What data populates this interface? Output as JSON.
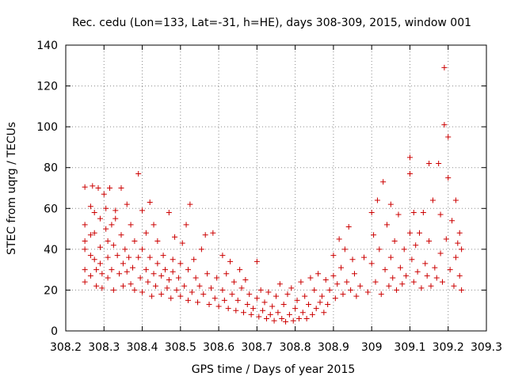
{
  "chart_data": {
    "type": "scatter",
    "title": "Rec. cedu (Lon=133, Lat=-31, h=HE), days 308-309, 2015, window 001",
    "xlabel": "GPS time / Days of year 2015",
    "ylabel": "STEC from uqrg / TECUs",
    "xlim": [
      308.2,
      309.3
    ],
    "ylim": [
      0,
      140
    ],
    "xticks": [
      308.2,
      308.3,
      308.4,
      308.5,
      308.6,
      308.7,
      308.8,
      308.9,
      309,
      309.1,
      309.2,
      309.3
    ],
    "xtick_labels": [
      "308.2",
      "308.3",
      "308.4",
      "308.5",
      "308.6",
      "308.7",
      "308.8",
      "308.9",
      "309",
      "309.1",
      "309.2",
      "309.3"
    ],
    "yticks": [
      0,
      20,
      40,
      60,
      80,
      100,
      120,
      140
    ],
    "ytick_labels": [
      "0",
      "20",
      "40",
      "60",
      "80",
      "100",
      "120",
      "140"
    ],
    "marker": "+",
    "marker_color": "#cc0000",
    "grid": true,
    "series": [
      {
        "name": "STEC",
        "points": [
          [
            308.25,
            70.5
          ],
          [
            308.25,
            52
          ],
          [
            308.25,
            44
          ],
          [
            308.25,
            40
          ],
          [
            308.25,
            30
          ],
          [
            308.25,
            24
          ],
          [
            308.265,
            61
          ],
          [
            308.265,
            47
          ],
          [
            308.265,
            37
          ],
          [
            308.265,
            27
          ],
          [
            308.27,
            71
          ],
          [
            308.275,
            58
          ],
          [
            308.275,
            48
          ],
          [
            308.275,
            35
          ],
          [
            308.28,
            30
          ],
          [
            308.28,
            22
          ],
          [
            308.285,
            70
          ],
          [
            308.29,
            55
          ],
          [
            308.29,
            41
          ],
          [
            308.29,
            33
          ],
          [
            308.295,
            28
          ],
          [
            308.295,
            21
          ],
          [
            308.3,
            67
          ],
          [
            308.305,
            60
          ],
          [
            308.305,
            50
          ],
          [
            308.31,
            44
          ],
          [
            308.31,
            36
          ],
          [
            308.31,
            26
          ],
          [
            308.315,
            70
          ],
          [
            308.32,
            52
          ],
          [
            308.32,
            30
          ],
          [
            308.325,
            42
          ],
          [
            308.325,
            20
          ],
          [
            308.33,
            59
          ],
          [
            308.33,
            55
          ],
          [
            308.335,
            37
          ],
          [
            308.34,
            28
          ],
          [
            308.345,
            70
          ],
          [
            308.345,
            47
          ],
          [
            308.35,
            33
          ],
          [
            308.35,
            22
          ],
          [
            308.355,
            40
          ],
          [
            308.36,
            62
          ],
          [
            308.36,
            29
          ],
          [
            308.365,
            36
          ],
          [
            308.37,
            52
          ],
          [
            308.37,
            23
          ],
          [
            308.375,
            31
          ],
          [
            308.38,
            44
          ],
          [
            308.38,
            20
          ],
          [
            308.39,
            77
          ],
          [
            308.39,
            36
          ],
          [
            308.395,
            26
          ],
          [
            308.4,
            59
          ],
          [
            308.4,
            40
          ],
          [
            308.4,
            19
          ],
          [
            308.41,
            48
          ],
          [
            308.41,
            30
          ],
          [
            308.415,
            24
          ],
          [
            308.42,
            63
          ],
          [
            308.42,
            36
          ],
          [
            308.425,
            17
          ],
          [
            308.43,
            52
          ],
          [
            308.43,
            28
          ],
          [
            308.435,
            22
          ],
          [
            308.44,
            44
          ],
          [
            308.44,
            33
          ],
          [
            308.45,
            27
          ],
          [
            308.45,
            18
          ],
          [
            308.455,
            37
          ],
          [
            308.46,
            30
          ],
          [
            308.465,
            21
          ],
          [
            308.47,
            58
          ],
          [
            308.47,
            25
          ],
          [
            308.475,
            16
          ],
          [
            308.48,
            35
          ],
          [
            308.48,
            29
          ],
          [
            308.485,
            46
          ],
          [
            308.49,
            20
          ],
          [
            308.495,
            26
          ],
          [
            308.5,
            33
          ],
          [
            308.5,
            17
          ],
          [
            308.505,
            43
          ],
          [
            308.51,
            22
          ],
          [
            308.515,
            52
          ],
          [
            308.52,
            30
          ],
          [
            308.52,
            15
          ],
          [
            308.525,
            62
          ],
          [
            308.53,
            19
          ],
          [
            308.535,
            35
          ],
          [
            308.54,
            26
          ],
          [
            308.545,
            14
          ],
          [
            308.55,
            22
          ],
          [
            308.555,
            40
          ],
          [
            308.56,
            18
          ],
          [
            308.565,
            47
          ],
          [
            308.57,
            28
          ],
          [
            308.575,
            13
          ],
          [
            308.58,
            21
          ],
          [
            308.585,
            48
          ],
          [
            308.59,
            16
          ],
          [
            308.595,
            26
          ],
          [
            308.6,
            12
          ],
          [
            308.61,
            37
          ],
          [
            308.61,
            20
          ],
          [
            308.615,
            15
          ],
          [
            308.62,
            28
          ],
          [
            308.625,
            11
          ],
          [
            308.63,
            34
          ],
          [
            308.635,
            18
          ],
          [
            308.64,
            24
          ],
          [
            308.645,
            10
          ],
          [
            308.65,
            15
          ],
          [
            308.655,
            30
          ],
          [
            308.66,
            21
          ],
          [
            308.665,
            9
          ],
          [
            308.67,
            25
          ],
          [
            308.675,
            13
          ],
          [
            308.68,
            18
          ],
          [
            308.685,
            8
          ],
          [
            308.69,
            11
          ],
          [
            308.7,
            34
          ],
          [
            308.7,
            16
          ],
          [
            308.705,
            7
          ],
          [
            308.71,
            20
          ],
          [
            308.715,
            10
          ],
          [
            308.72,
            14
          ],
          [
            308.725,
            6
          ],
          [
            308.73,
            19
          ],
          [
            308.735,
            8
          ],
          [
            308.74,
            12
          ],
          [
            308.745,
            5
          ],
          [
            308.75,
            17
          ],
          [
            308.755,
            9
          ],
          [
            308.76,
            23
          ],
          [
            308.765,
            6
          ],
          [
            308.77,
            13
          ],
          [
            308.775,
            4.5
          ],
          [
            308.78,
            18
          ],
          [
            308.785,
            8
          ],
          [
            308.79,
            21
          ],
          [
            308.795,
            5
          ],
          [
            308.8,
            11
          ],
          [
            308.805,
            15
          ],
          [
            308.81,
            6
          ],
          [
            308.815,
            24
          ],
          [
            308.82,
            9
          ],
          [
            308.825,
            17
          ],
          [
            308.83,
            6
          ],
          [
            308.835,
            13
          ],
          [
            308.84,
            26
          ],
          [
            308.845,
            8
          ],
          [
            308.85,
            20
          ],
          [
            308.855,
            11
          ],
          [
            308.86,
            28
          ],
          [
            308.865,
            14
          ],
          [
            308.87,
            17
          ],
          [
            308.875,
            9
          ],
          [
            308.88,
            25
          ],
          [
            308.885,
            13
          ],
          [
            308.89,
            20
          ],
          [
            308.9,
            37
          ],
          [
            308.9,
            27
          ],
          [
            308.905,
            16
          ],
          [
            308.91,
            23
          ],
          [
            308.915,
            45
          ],
          [
            308.92,
            31
          ],
          [
            308.925,
            18
          ],
          [
            308.93,
            40
          ],
          [
            308.935,
            24
          ],
          [
            308.94,
            51
          ],
          [
            308.945,
            20
          ],
          [
            308.95,
            35
          ],
          [
            308.955,
            28
          ],
          [
            308.96,
            17
          ],
          [
            308.97,
            22
          ],
          [
            308.98,
            36
          ],
          [
            308.99,
            19
          ],
          [
            309.0,
            58
          ],
          [
            309.0,
            33
          ],
          [
            309.005,
            47
          ],
          [
            309.01,
            24
          ],
          [
            309.015,
            64
          ],
          [
            309.02,
            40
          ],
          [
            309.025,
            18
          ],
          [
            309.03,
            73
          ],
          [
            309.035,
            30
          ],
          [
            309.04,
            52
          ],
          [
            309.045,
            22
          ],
          [
            309.05,
            62
          ],
          [
            309.05,
            36
          ],
          [
            309.055,
            26
          ],
          [
            309.06,
            44
          ],
          [
            309.065,
            20
          ],
          [
            309.07,
            57
          ],
          [
            309.075,
            31
          ],
          [
            309.08,
            23
          ],
          [
            309.085,
            40
          ],
          [
            309.09,
            27
          ],
          [
            309.1,
            85
          ],
          [
            309.1,
            77
          ],
          [
            309.1,
            48
          ],
          [
            309.105,
            35
          ],
          [
            309.11,
            58
          ],
          [
            309.11,
            24
          ],
          [
            309.115,
            42
          ],
          [
            309.12,
            29
          ],
          [
            309.125,
            48
          ],
          [
            309.13,
            21
          ],
          [
            309.135,
            58
          ],
          [
            309.14,
            33
          ],
          [
            309.145,
            27
          ],
          [
            309.15,
            82
          ],
          [
            309.15,
            44
          ],
          [
            309.155,
            22
          ],
          [
            309.16,
            64
          ],
          [
            309.165,
            31
          ],
          [
            309.17,
            26
          ],
          [
            309.175,
            82
          ],
          [
            309.18,
            57
          ],
          [
            309.18,
            38
          ],
          [
            309.185,
            24
          ],
          [
            309.19,
            129
          ],
          [
            309.19,
            101
          ],
          [
            309.195,
            45
          ],
          [
            309.2,
            95
          ],
          [
            309.2,
            75
          ],
          [
            309.205,
            30
          ],
          [
            309.21,
            54
          ],
          [
            309.215,
            22
          ],
          [
            309.22,
            64
          ],
          [
            309.22,
            36
          ],
          [
            309.225,
            43
          ],
          [
            309.23,
            48
          ],
          [
            309.23,
            27
          ],
          [
            309.235,
            40
          ],
          [
            309.235,
            20
          ]
        ]
      }
    ]
  }
}
